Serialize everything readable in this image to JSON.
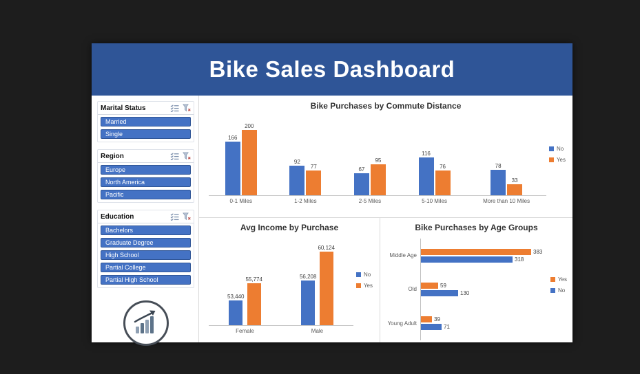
{
  "header": {
    "title": "Bike Sales Dashboard"
  },
  "colors": {
    "series_no": "#4472C4",
    "series_yes": "#ED7D31",
    "header_bg": "#2F5597"
  },
  "slicers": [
    {
      "title": "Marital Status",
      "items": [
        "Married",
        "Single"
      ]
    },
    {
      "title": "Region",
      "items": [
        "Europe",
        "North America",
        "Pacific"
      ]
    },
    {
      "title": "Education",
      "items": [
        "Bachelors",
        "Graduate Degree",
        "High School",
        "Partial College",
        "Partial High School"
      ]
    }
  ],
  "chart_data": [
    {
      "type": "bar",
      "title": "Bike Purchases by Commute Distance",
      "categories": [
        "0-1 Miles",
        "1-2 Miles",
        "2-5 Miles",
        "5-10 Miles",
        "More than 10 Miles"
      ],
      "series": [
        {
          "name": "No",
          "color": "#4472C4",
          "values": [
            166,
            92,
            67,
            116,
            78
          ]
        },
        {
          "name": "Yes",
          "color": "#ED7D31",
          "values": [
            200,
            77,
            95,
            76,
            33
          ]
        }
      ],
      "ylim": [
        0,
        220
      ],
      "legend_position": "right",
      "data_labels": true,
      "grid": false
    },
    {
      "type": "bar",
      "title": "Avg Income by Purchase",
      "categories": [
        "Female",
        "Male"
      ],
      "series": [
        {
          "name": "No",
          "color": "#4472C4",
          "values": [
            53440,
            56208
          ]
        },
        {
          "name": "Yes",
          "color": "#ED7D31",
          "values": [
            55774,
            60124
          ]
        }
      ],
      "ylim": [
        50000,
        61000
      ],
      "legend_position": "right",
      "data_labels": true,
      "grid": false
    },
    {
      "type": "bar-horizontal",
      "title": "Bike Purchases by Age Groups",
      "categories": [
        "Middle Age",
        "Old",
        "Young Adult"
      ],
      "series": [
        {
          "name": "Yes",
          "color": "#ED7D31",
          "values": [
            383,
            59,
            39
          ]
        },
        {
          "name": "No",
          "color": "#4472C4",
          "values": [
            318,
            130,
            71
          ]
        }
      ],
      "xlim": [
        0,
        420
      ],
      "legend_position": "right",
      "data_labels": true,
      "grid": false
    }
  ]
}
